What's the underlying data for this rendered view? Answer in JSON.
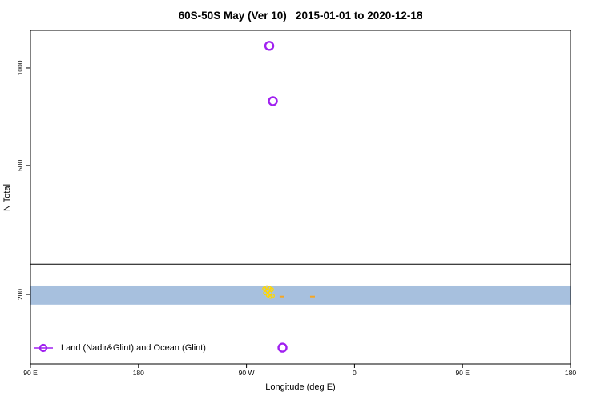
{
  "title": "60S-50S May (Ver 10)   2015-01-01 to 2020-12-18",
  "axes": {
    "xlabel": "Longitude (deg E)",
    "ylabel": "N Total"
  },
  "legend": {
    "label": "Land (Nadir&Glint) and Ocean (Glint)",
    "marker_color": "#a020f0"
  },
  "chart_data": {
    "type": "scatter",
    "title": "60S-50S May (Ver 10)   2015-01-01 to 2020-12-18",
    "xlabel": "Longitude (deg E)",
    "ylabel": "N Total",
    "grid": false,
    "legend_position": "bottom-left inside plot",
    "x_axis": {
      "scale": "linear",
      "range_plot_deg": [
        90,
        540
      ],
      "tick_positions_plot_deg": [
        90,
        180,
        270,
        360,
        450,
        540
      ],
      "tick_labels": [
        "90 E",
        "180",
        "90 W",
        "0",
        "90 E",
        "180"
      ]
    },
    "y_axis": {
      "scale": "log",
      "range": [
        122,
        1306
      ],
      "tick_values": [
        1000,
        500,
        200
      ],
      "tick_labels": [
        "1000",
        "500",
        "200"
      ]
    },
    "series": [
      {
        "name": "Land (Nadir&Glint) and Ocean (Glint)",
        "marker": "open-circle",
        "color": "#a020f0",
        "points": [
          {
            "lon_deg_e": -71,
            "n_total": 1170
          },
          {
            "lon_deg_e": -68,
            "n_total": 790
          },
          {
            "lon_deg_e": -60,
            "n_total": 137
          }
        ]
      },
      {
        "name": "small yellow markers (unlabeled)",
        "marker": "small-open-circle",
        "color": "#ffd700",
        "points": [
          {
            "lon_deg_e": -75.0,
            "n_total": 208
          },
          {
            "lon_deg_e": -73.0,
            "n_total": 210
          },
          {
            "lon_deg_e": -71.0,
            "n_total": 209
          },
          {
            "lon_deg_e": -69.0,
            "n_total": 207
          },
          {
            "lon_deg_e": -72.3,
            "n_total": 205
          },
          {
            "lon_deg_e": -74.3,
            "n_total": 202
          },
          {
            "lon_deg_e": -70.3,
            "n_total": 202
          },
          {
            "lon_deg_e": -68.3,
            "n_total": 198
          },
          {
            "lon_deg_e": -72.0,
            "n_total": 199
          },
          {
            "lon_deg_e": -70.0,
            "n_total": 197
          }
        ]
      },
      {
        "name": "small orange dashes (unlabeled)",
        "marker": "dash",
        "color": "#f5a623",
        "points": [
          {
            "lon_deg_e": -60.4,
            "n_total": 197
          },
          {
            "lon_deg_e": -35.0,
            "n_total": 197
          }
        ]
      }
    ],
    "annotations": {
      "band": {
        "n_from": 186,
        "n_to": 213,
        "color": "#a7c0de"
      },
      "hline": {
        "n_total": 248,
        "color": "#000000"
      }
    }
  }
}
